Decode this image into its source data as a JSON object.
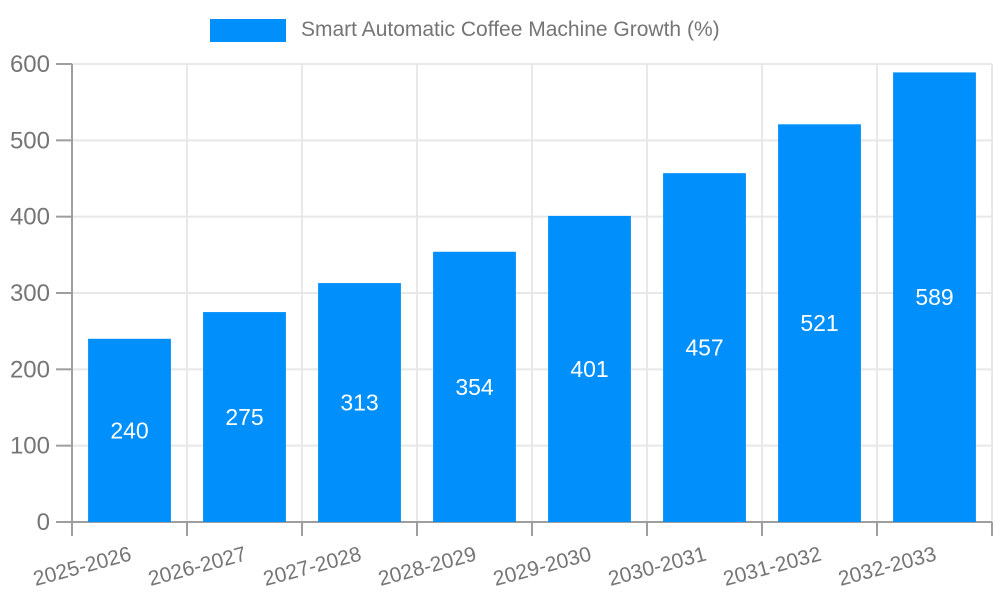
{
  "chart_data": {
    "type": "bar",
    "title": "Smart Automatic Coffee Machine Growth (%)",
    "categories": [
      "2025-2026",
      "2026-2027",
      "2027-2028",
      "2028-2029",
      "2029-2030",
      "2030-2031",
      "2031-2032",
      "2032-2033"
    ],
    "values": [
      240,
      275,
      313,
      354,
      401,
      457,
      521,
      589
    ],
    "series": [
      {
        "name": "Smart Automatic Coffee Machine Growth (%)",
        "values": [
          240,
          275,
          313,
          354,
          401,
          457,
          521,
          589
        ]
      }
    ],
    "xlabel": "",
    "ylabel": "",
    "ylim": [
      0,
      600
    ],
    "yticks": [
      0,
      100,
      200,
      300,
      400,
      500,
      600
    ],
    "grid": "on",
    "legend_position": "top-center",
    "bar_color": "#008FFB",
    "value_label_color": "#ffffff",
    "axis_text_color": "#757575",
    "axis_line_color": "#9e9e9e",
    "grid_color": "#e8e8e8"
  },
  "legend": {
    "label": "Smart Automatic Coffee Machine Growth (%)",
    "swatch_color": "#008FFB"
  }
}
